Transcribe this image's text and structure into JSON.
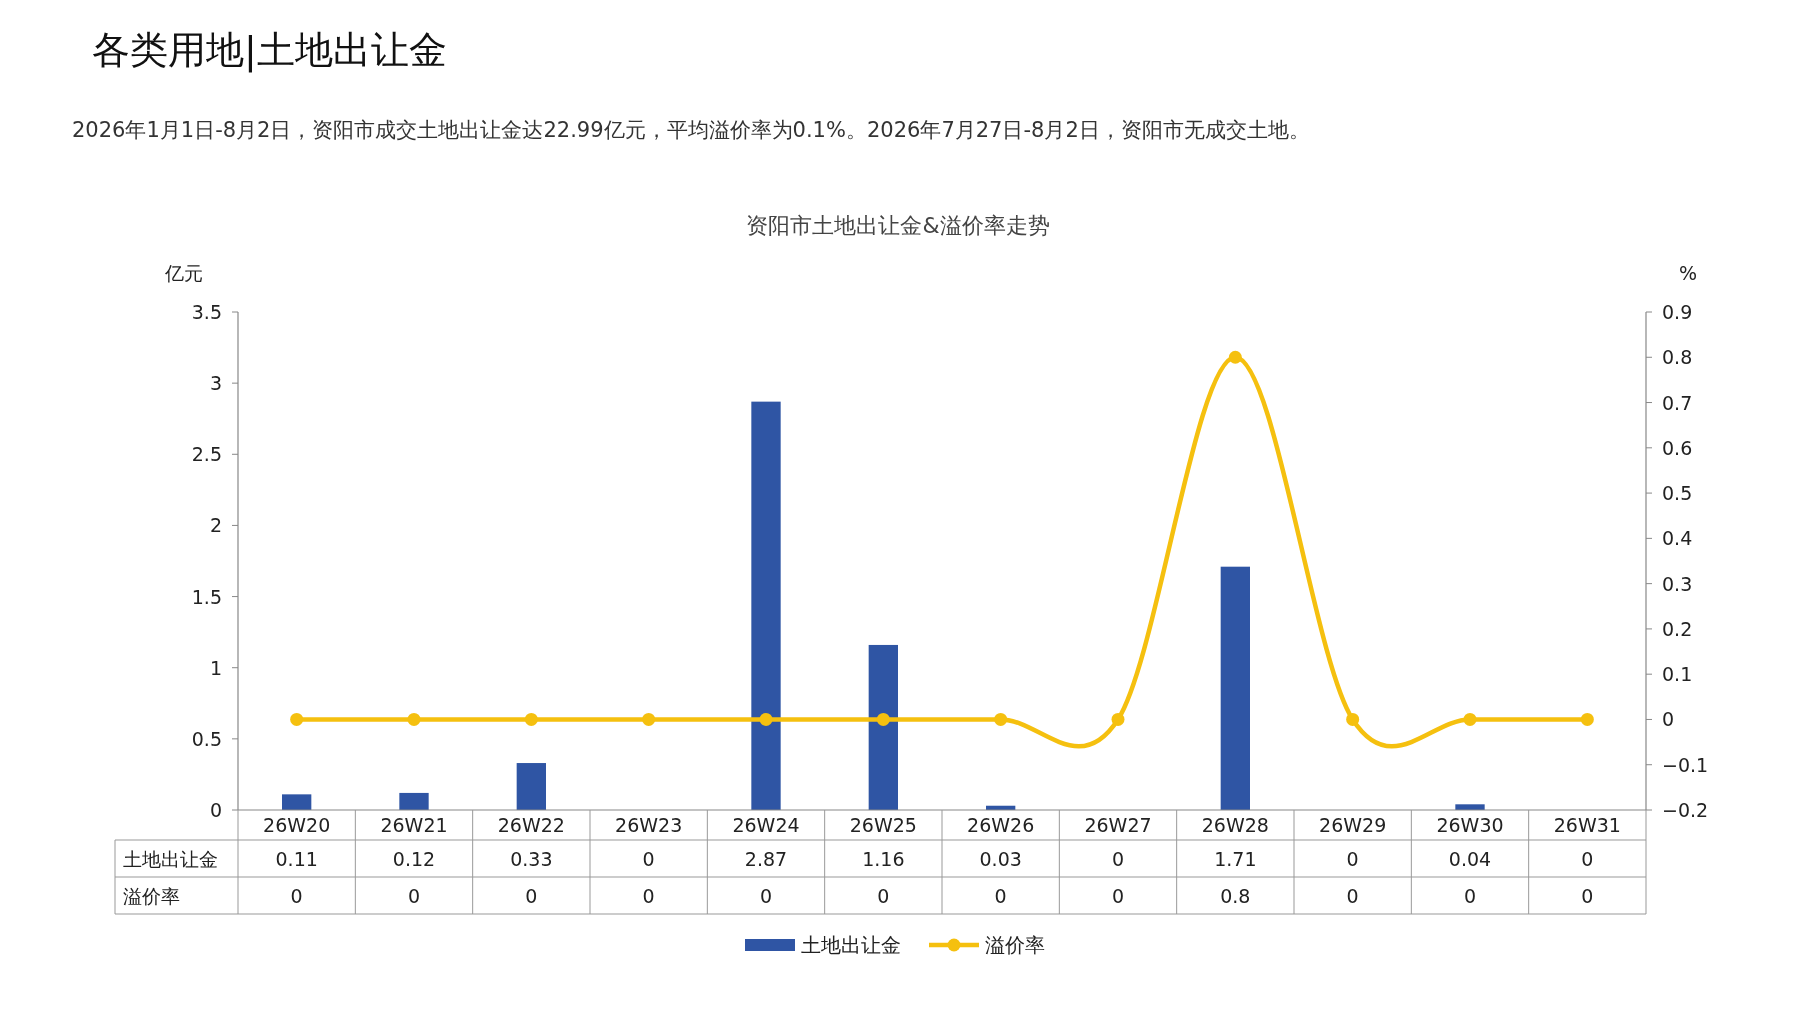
{
  "chart_data": {
    "type": "bar",
    "title": "各类用地|土地出让金",
    "subtitle": "2026年1月1日-8月2日，资阳市成交土地出让金达22.99亿元，平均溢价率为0.1%。2026年7月27日-8月2日，资阳市无成交土地。",
    "annotations": [
      "资阳市土地出让金&溢价率走势"
    ],
    "ylabel": "亿元",
    "y2label": "%",
    "categories": [
      "26W20",
      "26W21",
      "26W22",
      "26W23",
      "26W24",
      "26W25",
      "26W26",
      "26W27",
      "26W28",
      "26W29",
      "26W30",
      "26W31"
    ],
    "series": [
      {
        "name": "土地出让金",
        "color": "#2f55a4",
        "values": [
          0.11,
          0.12,
          0.33,
          0,
          2.87,
          1.16,
          0.03,
          0,
          1.71,
          0,
          0.04,
          0
        ]
      },
      {
        "name": "溢价率",
        "type": "line",
        "axis": "y2",
        "color": "#f5c00f",
        "marker": "circle",
        "values": [
          0,
          0,
          0,
          0,
          0,
          0,
          0,
          0,
          0.8,
          0,
          0,
          0
        ]
      }
    ],
    "ylim": [
      0,
      3.5
    ],
    "yticks": [
      0,
      0.5,
      1,
      1.5,
      2,
      2.5,
      3,
      3.5
    ],
    "y2lim": [
      -0.2,
      0.9
    ],
    "y2ticks": [
      -0.2,
      -0.1,
      0,
      0.1,
      0.2,
      0.3,
      0.4,
      0.5,
      0.6,
      0.7,
      0.8,
      0.9
    ],
    "data_labels": true,
    "grid": false,
    "legend": "bottom"
  }
}
